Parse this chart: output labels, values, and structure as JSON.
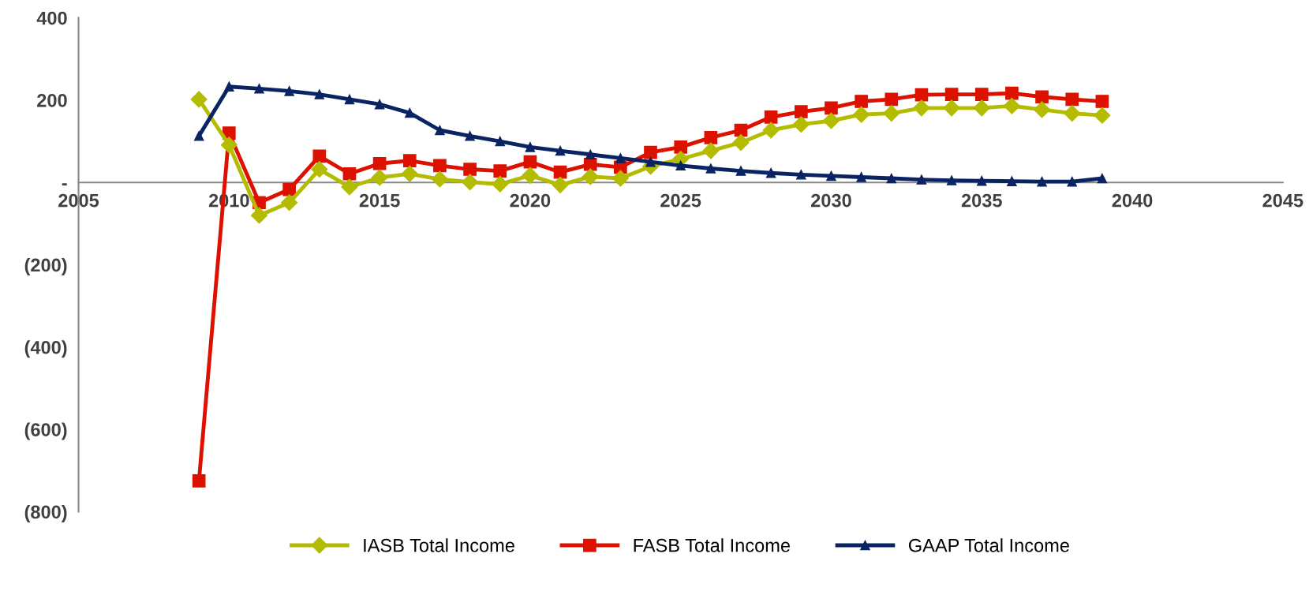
{
  "chart_data": {
    "type": "line",
    "x": [
      2009,
      2010,
      2011,
      2012,
      2013,
      2014,
      2015,
      2016,
      2017,
      2018,
      2019,
      2020,
      2021,
      2022,
      2023,
      2024,
      2025,
      2026,
      2027,
      2028,
      2029,
      2030,
      2031,
      2032,
      2033,
      2034,
      2035,
      2036,
      2037,
      2038,
      2039
    ],
    "series": [
      {
        "name": "IASB Total Income",
        "color": "#b3bc00",
        "marker": "diamond",
        "values": [
          202,
          91,
          -80,
          -49,
          32,
          -11,
          12,
          21,
          8,
          1,
          -4,
          17,
          -6,
          14,
          10,
          39,
          57,
          77,
          97,
          127,
          141,
          150,
          165,
          168,
          181,
          181,
          181,
          186,
          177,
          168,
          163
        ]
      },
      {
        "name": "FASB Total Income",
        "color": "#dd1100",
        "marker": "square",
        "values": [
          -725,
          120,
          -49,
          -17,
          64,
          21,
          46,
          53,
          41,
          32,
          28,
          50,
          25,
          44,
          37,
          73,
          86,
          109,
          127,
          159,
          172,
          181,
          197,
          202,
          213,
          214,
          214,
          217,
          208,
          202,
          197
        ]
      },
      {
        "name": "GAAP Total Income",
        "color": "#0a2463",
        "marker": "triangle",
        "values": [
          113,
          233,
          228,
          222,
          214,
          202,
          190,
          169,
          127,
          113,
          100,
          86,
          77,
          68,
          59,
          50,
          41,
          34,
          28,
          23,
          19,
          16,
          13,
          10,
          7,
          5,
          4,
          3,
          2,
          2,
          10
        ]
      }
    ],
    "xlim": [
      2005,
      2045
    ],
    "xticks": [
      2005,
      2010,
      2015,
      2020,
      2025,
      2030,
      2035,
      2040,
      2045
    ],
    "ylim": [
      -800,
      400
    ],
    "yticks": [
      {
        "value": -800,
        "label": "(800)"
      },
      {
        "value": -600,
        "label": "(600)"
      },
      {
        "value": -400,
        "label": "(400)"
      },
      {
        "value": -200,
        "label": "(200)"
      },
      {
        "value": 0,
        "label": "-"
      },
      200,
      400
    ],
    "grid": false,
    "legend": "bottom",
    "line_style": "solid"
  }
}
